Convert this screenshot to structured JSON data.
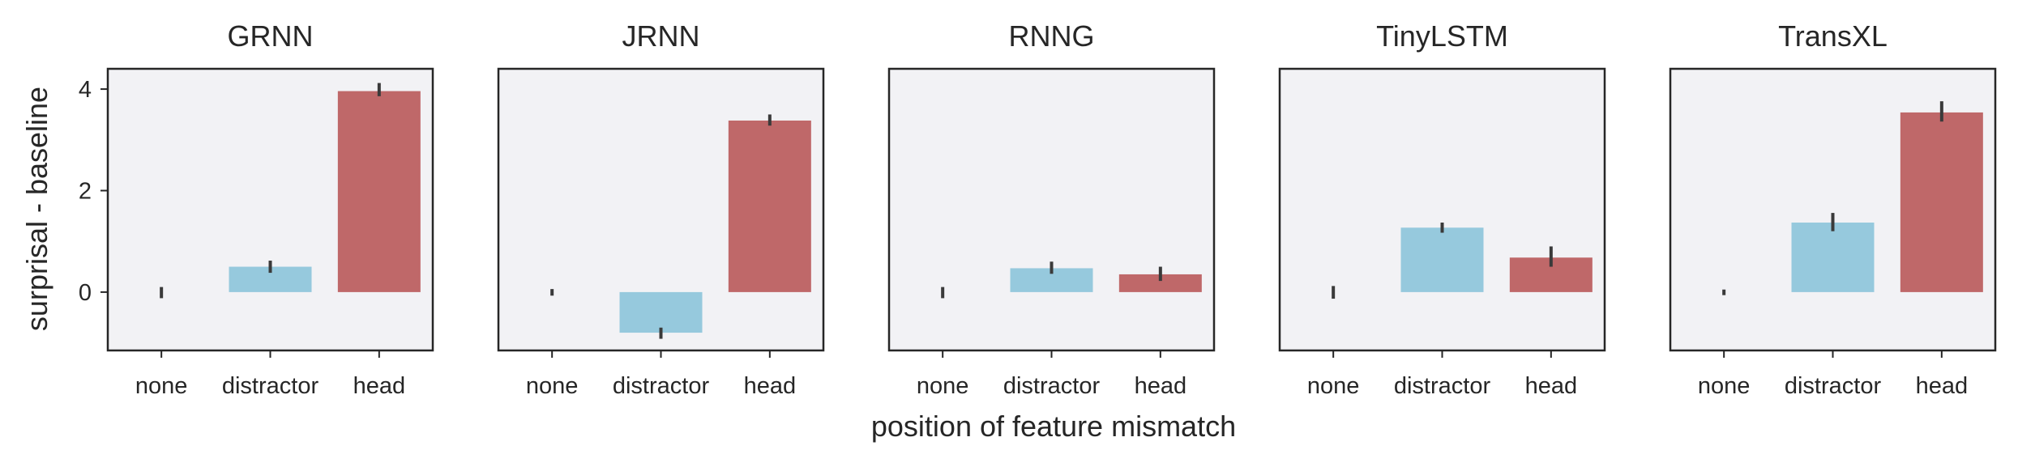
{
  "chart_data": {
    "type": "bar",
    "xlabel": "position of feature mismatch",
    "ylabel": "surprisal - baseline",
    "categories": [
      "none",
      "distractor",
      "head"
    ],
    "ylim": [
      -1.15,
      4.4
    ],
    "yticks": [
      0,
      2,
      4
    ],
    "grid": false,
    "sharey": true,
    "colors": {
      "none": "#8fc9de",
      "distractor": "#96c9dd",
      "head": "#bf6869",
      "errorbar": "#3a3a3a",
      "panel_background": "#f2f2f5",
      "frame": "#262626"
    },
    "panels": [
      {
        "title": "GRNN",
        "values": [
          0.0,
          0.5,
          3.96
        ],
        "ci": [
          [
            -0.12,
            0.1
          ],
          [
            0.38,
            0.62
          ],
          [
            3.86,
            4.12
          ]
        ]
      },
      {
        "title": "JRNN",
        "values": [
          0.0,
          -0.8,
          3.38
        ],
        "ci": [
          [
            -0.07,
            0.06
          ],
          [
            -0.92,
            -0.7
          ],
          [
            3.28,
            3.5
          ]
        ]
      },
      {
        "title": "RNNG",
        "values": [
          0.0,
          0.47,
          0.35
        ],
        "ci": [
          [
            -0.12,
            0.1
          ],
          [
            0.36,
            0.6
          ],
          [
            0.22,
            0.5
          ]
        ]
      },
      {
        "title": "TinyLSTM",
        "values": [
          0.0,
          1.27,
          0.68
        ],
        "ci": [
          [
            -0.13,
            0.12
          ],
          [
            1.17,
            1.37
          ],
          [
            0.5,
            0.9
          ]
        ]
      },
      {
        "title": "TransXL",
        "values": [
          0.0,
          1.37,
          3.54
        ],
        "ci": [
          [
            -0.06,
            0.05
          ],
          [
            1.2,
            1.56
          ],
          [
            3.36,
            3.76
          ]
        ]
      }
    ]
  }
}
